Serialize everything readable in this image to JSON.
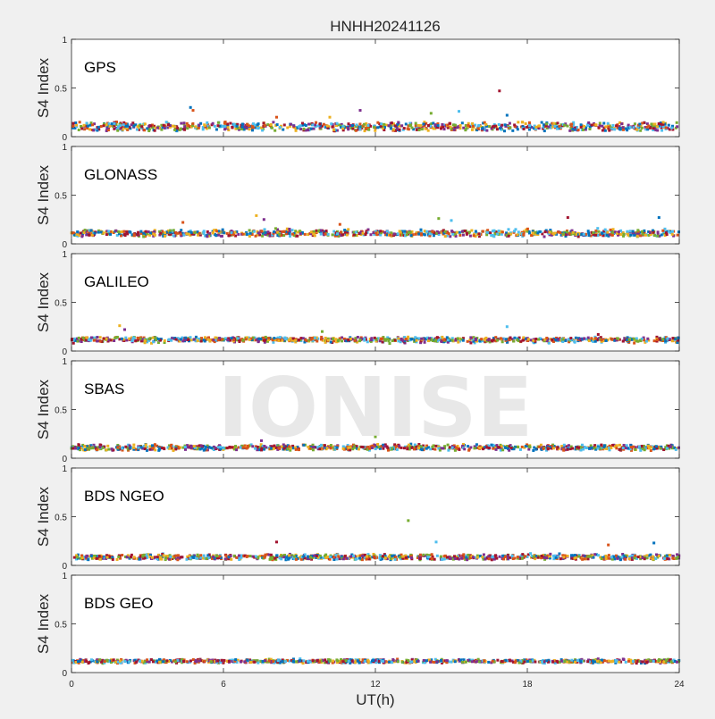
{
  "title": "HNHH20241126",
  "watermark": "IONISE",
  "colors": {
    "background": "#f0f0f0",
    "axes_bg": "#ffffff",
    "axis": "#262626",
    "palette": [
      "#0072BD",
      "#D95319",
      "#EDB120",
      "#7E2F8E",
      "#77AC30",
      "#4DBEEE",
      "#A2142F"
    ]
  },
  "chart_data": [
    {
      "type": "scatter",
      "label": "GPS",
      "ylabel": "S4 Index",
      "xlabel": "",
      "xlim": [
        0,
        24
      ],
      "ylim": [
        0,
        1
      ],
      "yticks": [
        "0",
        "0.5",
        "1"
      ],
      "xticks": [
        0,
        6,
        12,
        18,
        24
      ],
      "show_xtick_labels": false,
      "baseline": 0.09,
      "noise": 0.045,
      "spikes": [
        [
          4.7,
          0.3
        ],
        [
          4.8,
          0.27
        ],
        [
          10.2,
          0.2
        ],
        [
          11.4,
          0.27
        ],
        [
          14.2,
          0.24
        ],
        [
          15.3,
          0.26
        ],
        [
          16.9,
          0.47
        ],
        [
          17.2,
          0.22
        ],
        [
          8.1,
          0.2
        ]
      ]
    },
    {
      "type": "scatter",
      "label": "GLONASS",
      "ylabel": "S4 Index",
      "xlabel": "",
      "xlim": [
        0,
        24
      ],
      "ylim": [
        0,
        1
      ],
      "yticks": [
        "0",
        "0.5",
        "1"
      ],
      "xticks": [
        0,
        6,
        12,
        18,
        24
      ],
      "show_xtick_labels": false,
      "baseline": 0.1,
      "noise": 0.05,
      "spikes": [
        [
          4.4,
          0.22
        ],
        [
          7.3,
          0.29
        ],
        [
          7.6,
          0.25
        ],
        [
          14.5,
          0.26
        ],
        [
          15.0,
          0.24
        ],
        [
          19.6,
          0.27
        ],
        [
          23.2,
          0.27
        ],
        [
          10.6,
          0.2
        ]
      ]
    },
    {
      "type": "scatter",
      "label": "GALILEO",
      "ylabel": "S4 Index",
      "xlabel": "",
      "xlim": [
        0,
        24
      ],
      "ylim": [
        0,
        1
      ],
      "yticks": [
        "0",
        "0.5",
        "1"
      ],
      "xticks": [
        0,
        6,
        12,
        18,
        24
      ],
      "show_xtick_labels": false,
      "baseline": 0.09,
      "noise": 0.035,
      "spikes": [
        [
          1.9,
          0.26
        ],
        [
          2.1,
          0.22
        ],
        [
          9.9,
          0.2
        ],
        [
          17.2,
          0.25
        ],
        [
          20.8,
          0.17
        ]
      ]
    },
    {
      "type": "scatter",
      "label": "SBAS",
      "ylabel": "S4 Index",
      "xlabel": "",
      "xlim": [
        0,
        24
      ],
      "ylim": [
        0,
        1
      ],
      "yticks": [
        "0",
        "0.5",
        "1"
      ],
      "xticks": [
        0,
        6,
        12,
        18,
        24
      ],
      "show_xtick_labels": false,
      "baseline": 0.1,
      "noise": 0.025,
      "spikes": [
        [
          7.5,
          0.18
        ],
        [
          12.0,
          0.22
        ]
      ]
    },
    {
      "type": "scatter",
      "label": "BDS NGEO",
      "ylabel": "S4 Index",
      "xlabel": "",
      "xlim": [
        0,
        24
      ],
      "ylim": [
        0,
        1
      ],
      "yticks": [
        "0",
        "0.5",
        "1"
      ],
      "xticks": [
        0,
        6,
        12,
        18,
        24
      ],
      "show_xtick_labels": false,
      "baseline": 0.09,
      "noise": 0.045,
      "spikes": [
        [
          13.3,
          0.46
        ],
        [
          14.4,
          0.24
        ],
        [
          8.1,
          0.24
        ],
        [
          23.0,
          0.23
        ],
        [
          21.2,
          0.21
        ]
      ]
    },
    {
      "type": "scatter",
      "label": "BDS GEO",
      "ylabel": "S4 Index",
      "xlabel": "UT(h)",
      "xlim": [
        0,
        24
      ],
      "ylim": [
        0,
        1
      ],
      "yticks": [
        "0",
        "0.5",
        "1"
      ],
      "xticks": [
        0,
        6,
        12,
        18,
        24
      ],
      "show_xtick_labels": true,
      "baseline": 0.1,
      "noise": 0.02,
      "spikes": []
    }
  ]
}
